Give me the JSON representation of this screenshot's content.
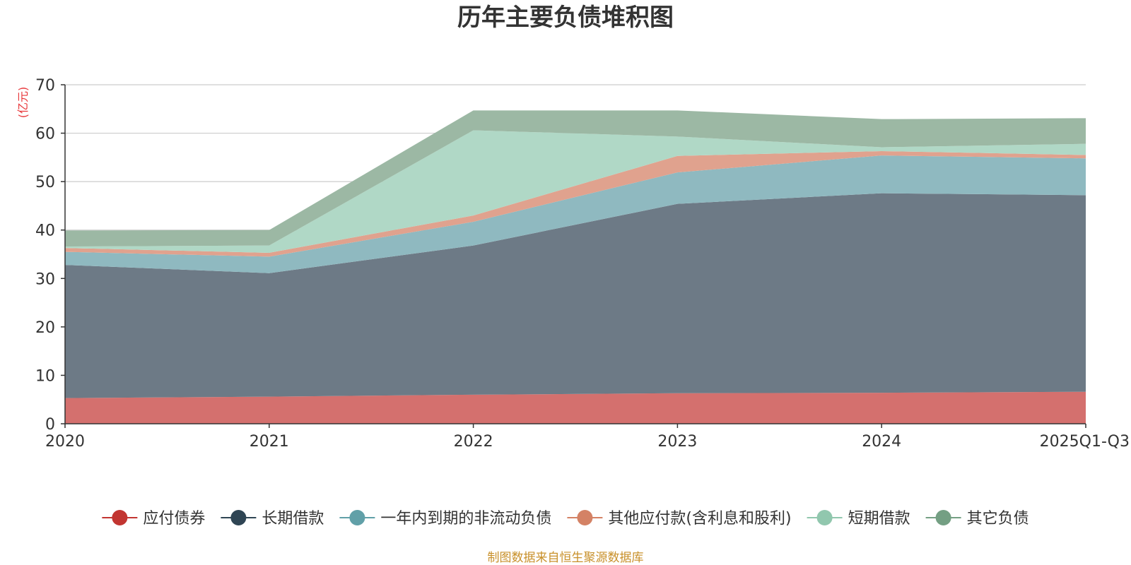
{
  "chart_data": {
    "type": "area",
    "stacked": true,
    "title": "历年主要负债堆积图",
    "ylabel": "(亿元)",
    "xlabel": "",
    "categories": [
      "2020",
      "2021",
      "2022",
      "2023",
      "2024",
      "2025Q1-Q3"
    ],
    "ylim": [
      0,
      70
    ],
    "yticks": [
      0,
      10,
      20,
      30,
      40,
      50,
      60,
      70
    ],
    "grid": true,
    "legend_position": "bottom",
    "series": [
      {
        "name": "应付债券",
        "color": "#c23531",
        "fill": "#d4706e",
        "values": [
          5.3,
          5.6,
          6.0,
          6.3,
          6.4,
          6.6
        ]
      },
      {
        "name": "长期借款",
        "color": "#2f4554",
        "fill": "#6d7a86",
        "values": [
          27.5,
          25.5,
          30.8,
          39.1,
          41.2,
          40.6
        ]
      },
      {
        "name": "一年内到期的非流动负债",
        "color": "#61a0a8",
        "fill": "#8fb9c0",
        "values": [
          2.7,
          3.4,
          4.9,
          6.5,
          7.8,
          7.6
        ]
      },
      {
        "name": "其他应付款(含利息和股利)",
        "color": "#d48265",
        "fill": "#e0a28e",
        "values": [
          0.8,
          0.8,
          1.3,
          3.4,
          0.9,
          0.7
        ]
      },
      {
        "name": "短期借款",
        "color": "#91c7ae",
        "fill": "#b0d8c6",
        "values": [
          0.3,
          1.5,
          17.6,
          4.0,
          0.8,
          2.3
        ]
      },
      {
        "name": "其它负债",
        "color": "#749f83",
        "fill": "#9cb8a4",
        "values": [
          3.3,
          3.2,
          4.1,
          5.4,
          5.8,
          5.3
        ]
      }
    ],
    "source": "制图数据来自恒生聚源数据库"
  }
}
